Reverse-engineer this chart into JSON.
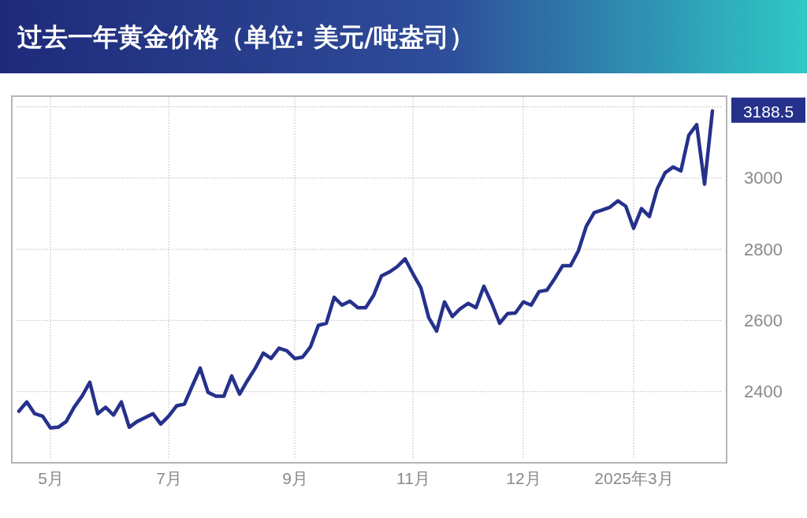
{
  "chart_data": {
    "type": "line",
    "title": "过去一年黄金价格（单位: 美元/吨盎司）",
    "categories": [
      null,
      null,
      null,
      null,
      "5月",
      null,
      null,
      null,
      null,
      null,
      null,
      null,
      null,
      null,
      null,
      null,
      null,
      null,
      null,
      "7月",
      null,
      null,
      null,
      null,
      null,
      null,
      null,
      null,
      null,
      null,
      null,
      null,
      null,
      null,
      null,
      "9月",
      null,
      null,
      null,
      null,
      null,
      null,
      null,
      null,
      null,
      null,
      null,
      null,
      null,
      null,
      "11月",
      null,
      null,
      null,
      null,
      null,
      null,
      null,
      null,
      null,
      null,
      null,
      null,
      null,
      "12月",
      null,
      null,
      null,
      null,
      null,
      null,
      null,
      null,
      null,
      null,
      null,
      null,
      null,
      "2025年3月",
      null,
      null,
      null,
      null,
      null,
      null,
      null,
      null,
      null,
      null
    ],
    "series": [
      {
        "color": "#26318c",
        "values": [
          2345,
          2371,
          2338,
          2331,
          2298,
          2300,
          2316,
          2356,
          2387,
          2426,
          2338,
          2356,
          2334,
          2371,
          2300,
          2316,
          2327,
          2338,
          2309,
          2331,
          2360,
          2365,
          2416,
          2466,
          2398,
          2387,
          2387,
          2444,
          2393,
          2431,
          2466,
          2508,
          2493,
          2522,
          2515,
          2493,
          2497,
          2526,
          2586,
          2592,
          2665,
          2643,
          2654,
          2636,
          2636,
          2670,
          2725,
          2736,
          2751,
          2773,
          2731,
          2692,
          2608,
          2570,
          2652,
          2611,
          2633,
          2648,
          2636,
          2696,
          2648,
          2592,
          2619,
          2621,
          2652,
          2643,
          2681,
          2685,
          2718,
          2754,
          2754,
          2796,
          2865,
          2903,
          2910,
          2918,
          2936,
          2921,
          2859,
          2914,
          2892,
          2970,
          3015,
          3031,
          3020,
          3120,
          3150,
          2983,
          3188.5
        ],
        "value_labels": [
          null,
          null,
          null,
          null,
          null,
          null,
          null,
          null,
          null,
          null,
          null,
          null,
          null,
          null,
          null,
          null,
          null,
          null,
          null,
          null,
          null,
          null,
          null,
          null,
          null,
          null,
          null,
          null,
          null,
          null,
          null,
          null,
          null,
          null,
          null,
          null,
          null,
          null,
          null,
          null,
          null,
          null,
          null,
          null,
          null,
          null,
          null,
          null,
          null,
          null,
          null,
          null,
          null,
          null,
          null,
          null,
          null,
          null,
          null,
          null,
          null,
          null,
          null,
          null,
          null,
          null,
          null,
          null,
          null,
          null,
          null,
          null,
          null,
          null,
          null,
          null,
          null,
          null,
          null,
          null,
          null,
          null,
          null,
          null,
          null,
          null,
          null,
          null,
          "3188.5"
        ]
      }
    ],
    "ylim": [
      2200,
      3230
    ],
    "yticks": [
      2400,
      2600,
      2800,
      3000,
      {
        "value": 3200,
        "label": null
      }
    ],
    "grid": true,
    "line_style": "solid",
    "marker": "none"
  }
}
